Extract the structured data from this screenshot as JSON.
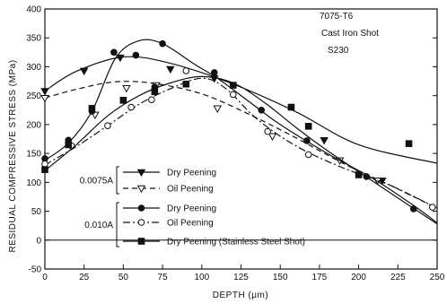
{
  "chart_data": {
    "type": "line",
    "title": "",
    "xlabel": "DEPTH (μm)",
    "ylabel": "RESIDUAL COMPRESSIVE STRESS (MPa)",
    "xlim": [
      0,
      250
    ],
    "ylim": [
      -50,
      400
    ],
    "x_ticks": [
      "0",
      "25",
      "50",
      "75",
      "100",
      "125",
      "150",
      "175",
      "200",
      "225",
      "250"
    ],
    "y_ticks": [
      "-50",
      "0",
      "50",
      "100",
      "150",
      "200",
      "250",
      "300",
      "350",
      "400"
    ],
    "annotations": [
      "7075-T6",
      "Cast Iron Shot",
      "S230"
    ],
    "legend_groups": [
      {
        "label": "0.0075A",
        "series": [
          0,
          1
        ]
      },
      {
        "label": "0.010A",
        "series": [
          2,
          3,
          4
        ]
      }
    ],
    "series": [
      {
        "name": "Dry Peening",
        "marker": "triangle-down-filled",
        "line": "solid",
        "points": [
          [
            0,
            258
          ],
          [
            25,
            293
          ],
          [
            48,
            316
          ],
          [
            80,
            296
          ],
          [
            108,
            280
          ],
          [
            178,
            173
          ],
          [
            215,
            103
          ]
        ],
        "curve": [
          [
            0,
            258
          ],
          [
            20,
            292
          ],
          [
            50,
            317
          ],
          [
            80,
            306
          ],
          [
            120,
            270
          ],
          [
            160,
            222
          ],
          [
            200,
            165
          ],
          [
            250,
            133
          ]
        ]
      },
      {
        "name": "Oil Peening",
        "marker": "triangle-down-open",
        "line": "dashed",
        "points": [
          [
            0,
            246
          ],
          [
            32,
            217
          ],
          [
            52,
            263
          ],
          [
            71,
            268
          ],
          [
            110,
            228
          ],
          [
            145,
            180
          ],
          [
            188,
            138
          ],
          [
            212,
            103
          ]
        ],
        "curve": [
          [
            0,
            246
          ],
          [
            20,
            261
          ],
          [
            45,
            274
          ],
          [
            70,
            271
          ],
          [
            100,
            253
          ],
          [
            130,
            218
          ],
          [
            160,
            177
          ],
          [
            190,
            133
          ],
          [
            220,
            95
          ],
          [
            250,
            55
          ]
        ]
      },
      {
        "name": "Dry Peening",
        "marker": "circle-filled",
        "line": "solid",
        "points": [
          [
            0,
            141
          ],
          [
            15,
            173
          ],
          [
            30,
            223
          ],
          [
            44,
            325
          ],
          [
            58,
            320
          ],
          [
            70,
            265
          ],
          [
            75,
            340
          ],
          [
            108,
            290
          ],
          [
            138,
            225
          ],
          [
            167,
            172
          ],
          [
            205,
            110
          ],
          [
            235,
            54
          ]
        ],
        "curve": [
          [
            0,
            138
          ],
          [
            15,
            168
          ],
          [
            30,
            223
          ],
          [
            45,
            315
          ],
          [
            60,
            345
          ],
          [
            75,
            340
          ],
          [
            95,
            305
          ],
          [
            110,
            280
          ],
          [
            130,
            240
          ],
          [
            150,
            200
          ],
          [
            180,
            150
          ],
          [
            210,
            105
          ],
          [
            235,
            60
          ],
          [
            250,
            30
          ]
        ]
      },
      {
        "name": "Oil Peening",
        "marker": "circle-open",
        "line": "dashdot",
        "points": [
          [
            0,
            132
          ],
          [
            17,
            163
          ],
          [
            40,
            198
          ],
          [
            55,
            230
          ],
          [
            68,
            243
          ],
          [
            90,
            293
          ],
          [
            120,
            252
          ],
          [
            142,
            188
          ],
          [
            168,
            148
          ],
          [
            247,
            57
          ]
        ],
        "curve": [
          [
            0,
            130
          ],
          [
            20,
            162
          ],
          [
            40,
            198
          ],
          [
            60,
            235
          ],
          [
            80,
            262
          ],
          [
            100,
            280
          ],
          [
            115,
            263
          ],
          [
            135,
            210
          ],
          [
            160,
            163
          ],
          [
            190,
            125
          ],
          [
            220,
            95
          ],
          [
            250,
            55
          ]
        ]
      },
      {
        "name": "Dry Peening (Stainless Steel Shot)",
        "marker": "square-filled",
        "line": "solid",
        "points": [
          [
            0,
            122
          ],
          [
            15,
            165
          ],
          [
            30,
            228
          ],
          [
            50,
            242
          ],
          [
            70,
            257
          ],
          [
            90,
            270
          ],
          [
            120,
            268
          ],
          [
            157,
            230
          ],
          [
            168,
            197
          ],
          [
            200,
            113
          ],
          [
            232,
            167
          ]
        ],
        "curve": [
          [
            0,
            120
          ],
          [
            20,
            165
          ],
          [
            40,
            215
          ],
          [
            60,
            250
          ],
          [
            80,
            272
          ],
          [
            100,
            283
          ],
          [
            120,
            272
          ],
          [
            140,
            238
          ],
          [
            160,
            195
          ],
          [
            180,
            155
          ],
          [
            210,
            100
          ],
          [
            250,
            28
          ]
        ]
      }
    ]
  }
}
